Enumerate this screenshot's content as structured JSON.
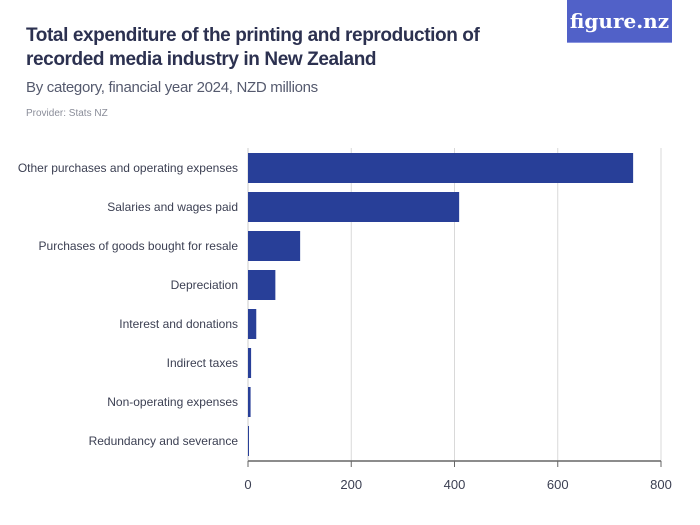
{
  "title": "Total expenditure of the printing and reproduction of recorded media industry in New Zealand",
  "subtitle": "By category, financial year 2024, NZD millions",
  "provider": "Provider: Stats NZ",
  "logo": "figure.nz",
  "colors": {
    "bar": "#283f98",
    "logo": "#5161c8",
    "grid": "#d9d9d9"
  },
  "chart_data": {
    "type": "bar",
    "orientation": "horizontal",
    "categories": [
      "Other purchases and operating expenses",
      "Salaries and wages paid",
      "Purchases of goods bought for resale",
      "Depreciation",
      "Interest and donations",
      "Indirect taxes",
      "Non-operating expenses",
      "Redundancy and severance"
    ],
    "values": [
      746,
      409,
      101,
      53,
      16,
      6,
      5,
      1
    ],
    "xlim": [
      0,
      800
    ],
    "xticks": [
      0,
      200,
      400,
      600,
      800
    ],
    "grid": true
  }
}
